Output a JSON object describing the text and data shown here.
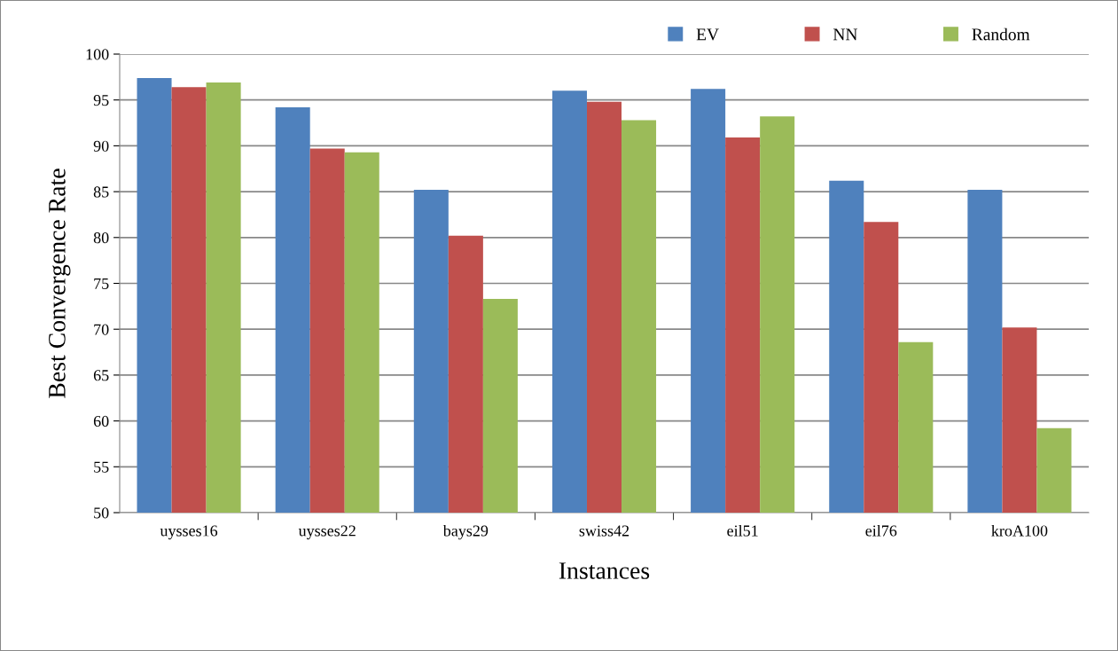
{
  "chart_data": {
    "type": "bar",
    "xlabel": "Instances",
    "ylabel": "Best Convergence Rate",
    "categories": [
      "uysses16",
      "uysses22",
      "bays29",
      "swiss42",
      "eil51",
      "eil76",
      "kroA100"
    ],
    "series": [
      {
        "name": "EV",
        "color": "#4f81bd",
        "values": [
          97.4,
          94.2,
          85.2,
          96.0,
          96.2,
          86.2,
          85.2
        ]
      },
      {
        "name": "NN",
        "color": "#c0504d",
        "values": [
          96.4,
          89.7,
          80.2,
          94.8,
          90.9,
          81.7,
          70.2
        ]
      },
      {
        "name": "Random",
        "color": "#9bbb59",
        "values": [
          96.9,
          89.3,
          73.3,
          92.8,
          93.2,
          68.6,
          59.2
        ]
      }
    ],
    "ylim": [
      50,
      100
    ],
    "yticks": [
      50,
      55,
      60,
      65,
      70,
      75,
      80,
      85,
      90,
      95,
      100
    ],
    "grid": "y",
    "legend": "top right"
  }
}
